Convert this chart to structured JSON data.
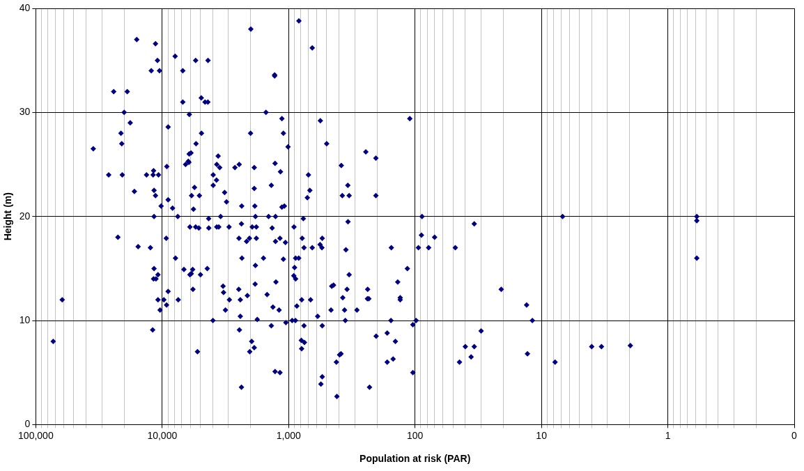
{
  "chart_data": {
    "type": "scatter",
    "xlabel": "Population at risk (PAR)",
    "ylabel": "Height (m)",
    "log": "x",
    "grid": true,
    "marker": "diamond",
    "legend": false,
    "xlim": [
      100000,
      0.1
    ],
    "xticks": [
      {
        "value": 100000,
        "label": "100,000"
      },
      {
        "value": 90000,
        "label": null
      },
      {
        "value": 80000,
        "label": null
      },
      {
        "value": 70000,
        "label": null
      },
      {
        "value": 60000,
        "label": null
      },
      {
        "value": 50000,
        "label": null
      },
      {
        "value": 40000,
        "label": null
      },
      {
        "value": 30000,
        "label": null
      },
      {
        "value": 20000,
        "label": null
      },
      {
        "value": 10000,
        "label": "10,000"
      },
      {
        "value": 9000,
        "label": null
      },
      {
        "value": 8000,
        "label": null
      },
      {
        "value": 7000,
        "label": null
      },
      {
        "value": 6000,
        "label": null
      },
      {
        "value": 5000,
        "label": null
      },
      {
        "value": 4000,
        "label": null
      },
      {
        "value": 3000,
        "label": null
      },
      {
        "value": 2000,
        "label": null
      },
      {
        "value": 1000,
        "label": "1,000"
      },
      {
        "value": 900,
        "label": null
      },
      {
        "value": 800,
        "label": null
      },
      {
        "value": 700,
        "label": null
      },
      {
        "value": 600,
        "label": null
      },
      {
        "value": 500,
        "label": null
      },
      {
        "value": 400,
        "label": null
      },
      {
        "value": 300,
        "label": null
      },
      {
        "value": 200,
        "label": null
      },
      {
        "value": 100,
        "label": "100"
      },
      {
        "value": 90,
        "label": null
      },
      {
        "value": 80,
        "label": null
      },
      {
        "value": 70,
        "label": null
      },
      {
        "value": 60,
        "label": null
      },
      {
        "value": 50,
        "label": null
      },
      {
        "value": 40,
        "label": null
      },
      {
        "value": 30,
        "label": null
      },
      {
        "value": 20,
        "label": null
      },
      {
        "value": 10,
        "label": "10"
      },
      {
        "value": 9,
        "label": null
      },
      {
        "value": 8,
        "label": null
      },
      {
        "value": 7,
        "label": null
      },
      {
        "value": 6,
        "label": null
      },
      {
        "value": 5,
        "label": null
      },
      {
        "value": 4,
        "label": null
      },
      {
        "value": 3,
        "label": null
      },
      {
        "value": 2,
        "label": null
      },
      {
        "value": 1,
        "label": "1"
      },
      {
        "value": 0.9,
        "label": null
      },
      {
        "value": 0.8,
        "label": null
      },
      {
        "value": 0.7,
        "label": null
      },
      {
        "value": 0.6,
        "label": null
      },
      {
        "value": 0.5,
        "label": null
      },
      {
        "value": 0.4,
        "label": null
      },
      {
        "value": 0.3,
        "label": null
      },
      {
        "value": 0.2,
        "label": null
      },
      {
        "value": 0.1,
        "label": "0"
      }
    ],
    "ylim": [
      0,
      40
    ],
    "yticks": [
      0,
      10,
      20,
      30,
      40
    ],
    "series": [
      {
        "color": "#000080",
        "x": [
          15900,
          11300,
          7900,
          10900,
          12200,
          10500,
          24200,
          18900,
          20000,
          17900,
          8970,
          21200,
          20900,
          35100,
          9190,
          11700,
          26500,
          20700,
          13300,
          11800,
          10700,
          16600,
          11600,
          11300,
          8980,
          10200,
          8280,
          11600,
          22400,
          9290,
          15500,
          12400,
          7850,
          11600,
          10800,
          11700,
          11200,
          8980,
          61800,
          10800,
          9700,
          9240,
          10400,
          11900,
          72800,
          829,
          1990,
          5440,
          4340,
          6870,
          1290,
          1290,
          6870,
          4910,
          4580,
          4350,
          6100,
          1510,
          1130,
          4890,
          2000,
          1100,
          5400,
          1010,
          6120,
          5920,
          3610,
          6530,
          6150,
          6220,
          3700,
          3510,
          2660,
          2460,
          1870,
          1280,
          1160,
          697,
          3950,
          3720,
          3950,
          5550,
          1370,
          1870,
          679,
          5860,
          5080,
          3210,
          711,
          3100,
          5660,
          2350,
          1850,
          1130,
          1080,
          7530,
          4290,
          3450,
          1830,
          1440,
          1270,
          765,
          6040,
          5440,
          5130,
          4280,
          3700,
          3570,
          2960,
          2360,
          1940,
          1800,
          1350,
          906,
          2470,
          2150,
          2040,
          1800,
          1270,
          1170,
          1060,
          781,
          755,
          2340,
          1580,
          1100,
          880,
          832,
          6730,
          5740,
          5890,
          6040,
          4980,
          4400,
          1830,
          897,
          910,
          880,
          5710,
          3300,
          3270,
          2480,
          1840,
          1260,
          7470,
          2940,
          2410,
          2120,
          1480,
          861,
          788,
          3160,
          1330,
          1190,
          2410,
          3970,
          1770,
          1050,
          938,
          883,
          2450,
          1370,
          755,
          793,
          750,
          789,
          1960,
          1870,
          2030,
          5260,
          1280,
          1170,
          2360,
          650,
          561,
          110,
          500,
          245,
          204,
          383,
          340,
          376,
          332,
          204,
          339,
          88,
          89,
          70,
          542,
          564,
          545,
          650,
          352,
          154,
          94,
          78,
          115,
          332,
          137,
          456,
          441,
          345,
          237,
          238,
          232,
          131,
          131,
          373,
          670,
          462,
          361,
          288,
          589,
          356,
          155,
          98,
          104,
          542,
          203,
          166,
          143,
          385,
          395,
          419,
          166,
          149,
          542,
          555,
          229,
          104,
          415,
          48,
          34,
          44.5,
          40,
          36,
          34,
          30,
          20.8,
          13.1,
          12.9,
          11.8,
          7.8,
          6.8,
          4,
          3.35,
          1.98,
          0.59,
          0.59,
          0.59
        ],
        "values": [
          37,
          36.6,
          35.4,
          35,
          34,
          34,
          32,
          32,
          30,
          29,
          28.6,
          28,
          27,
          26.5,
          24.8,
          24.4,
          24,
          24,
          24,
          24,
          24,
          22.4,
          22.5,
          22,
          21.6,
          21,
          20.8,
          20,
          18,
          17.9,
          17.1,
          17,
          16,
          15,
          14.4,
          14,
          14,
          12.8,
          12,
          12,
          12,
          11.5,
          11,
          9.1,
          8,
          38.8,
          38,
          35,
          35,
          34,
          33.6,
          33.5,
          31,
          31.4,
          31,
          31,
          29.8,
          30,
          29.4,
          28,
          28,
          28,
          27,
          26.7,
          26,
          26.1,
          25.8,
          25,
          25.2,
          25.3,
          25,
          24.7,
          24.7,
          25,
          24.7,
          25.1,
          24.3,
          24,
          24,
          23.5,
          23,
          22.8,
          23,
          22.7,
          22.5,
          22,
          22,
          22.3,
          21.8,
          21.4,
          20.7,
          21,
          21,
          20.9,
          21,
          20,
          19.8,
          20,
          20,
          20,
          20,
          19.8,
          19,
          19,
          18.9,
          18.9,
          19,
          19,
          19,
          19.3,
          19,
          19,
          18.9,
          19,
          17.9,
          17.6,
          17.9,
          17.9,
          17.6,
          17.9,
          17.5,
          17.9,
          17,
          16,
          16,
          15.9,
          16,
          16,
          14.9,
          14.9,
          14.5,
          14.4,
          14.4,
          15,
          15.3,
          15.1,
          14.3,
          14,
          13,
          13.3,
          12.7,
          13,
          13.5,
          13.7,
          12,
          12,
          12,
          12.4,
          12.5,
          11.4,
          12,
          11,
          11.3,
          11,
          10.4,
          10,
          10.1,
          9.8,
          10,
          10,
          9.1,
          9.5,
          9.5,
          8.1,
          7.9,
          7.3,
          8,
          7.4,
          7,
          7,
          5.1,
          5,
          3.6,
          36.2,
          29.2,
          29.4,
          27,
          26.2,
          25.6,
          24.9,
          23,
          22,
          22,
          22,
          19.5,
          20,
          18.2,
          18,
          17.9,
          17.3,
          17,
          17,
          16.8,
          17,
          17,
          17,
          15,
          14.4,
          13.7,
          13.3,
          13.4,
          13,
          13,
          12.1,
          12.1,
          12.2,
          12,
          12.2,
          12,
          11,
          11,
          11,
          10.4,
          10,
          10,
          10,
          9.6,
          9.5,
          8.5,
          8.8,
          8,
          6.8,
          6.7,
          6,
          6,
          6.3,
          4.6,
          3.9,
          3.6,
          5,
          2.7,
          17,
          19.3,
          6,
          7.5,
          6.5,
          7.5,
          9,
          13,
          11.5,
          6.8,
          10,
          6,
          20,
          7.5,
          7.5,
          7.6,
          20,
          19.6,
          16
        ]
      }
    ]
  }
}
